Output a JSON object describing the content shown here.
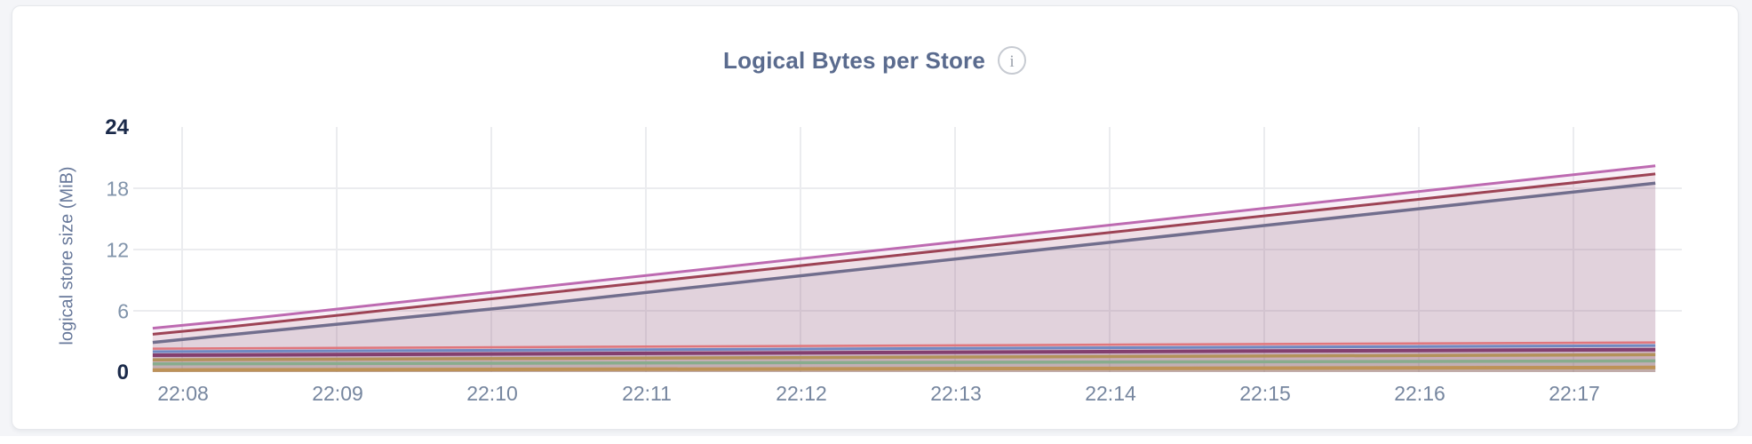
{
  "page": {
    "background": "#f4f5f8"
  },
  "card": {
    "title": "Logical Bytes per Store",
    "info_icon_glyph": "i"
  },
  "chart_data": {
    "type": "area",
    "title": "Logical Bytes per Store",
    "xlabel": "",
    "ylabel": "logical store size (MiB)",
    "ylim": [
      0,
      24
    ],
    "grid": {
      "color": "#ebecef",
      "horizontal_at": [
        6,
        12,
        18
      ],
      "vertical_at_ticks": true
    },
    "legend": "none",
    "y_ticks": [
      {
        "value": 0,
        "label": "0",
        "emphasis": true
      },
      {
        "value": 6,
        "label": "6",
        "emphasis": false
      },
      {
        "value": 12,
        "label": "12",
        "emphasis": false
      },
      {
        "value": 18,
        "label": "18",
        "emphasis": false
      },
      {
        "value": 24,
        "label": "24",
        "emphasis": true
      }
    ],
    "x_ticks": [
      {
        "minute": 0,
        "label": "22:08"
      },
      {
        "minute": 1,
        "label": "22:09"
      },
      {
        "minute": 2,
        "label": "22:10"
      },
      {
        "minute": 3,
        "label": "22:11"
      },
      {
        "minute": 4,
        "label": "22:12"
      },
      {
        "minute": 5,
        "label": "22:13"
      },
      {
        "minute": 6,
        "label": "22:14"
      },
      {
        "minute": 7,
        "label": "22:15"
      },
      {
        "minute": 8,
        "label": "22:16"
      },
      {
        "minute": 9,
        "label": "22:17"
      }
    ],
    "x_domain_minutes_from_22_08": [
      -0.19,
      9.53
    ],
    "series": [
      {
        "id": "store-1",
        "color": "#bd6ab1",
        "width": 3,
        "fill_opacity": 0.1,
        "points": [
          [
            -0.19,
            4.3
          ],
          [
            0.35,
            5.1
          ],
          [
            9.53,
            20.2
          ]
        ]
      },
      {
        "id": "store-2",
        "color": "#9d4355",
        "width": 3,
        "fill_opacity": 0.1,
        "points": [
          [
            -0.19,
            3.7
          ],
          [
            0.35,
            4.5
          ],
          [
            9.53,
            19.4
          ]
        ]
      },
      {
        "id": "store-3",
        "color": "#716e8d",
        "width": 3.5,
        "fill_opacity": 0.1,
        "points": [
          [
            -0.19,
            2.9
          ],
          [
            2.15,
            6.4
          ],
          [
            9.53,
            18.5
          ]
        ]
      },
      {
        "id": "store-4",
        "color": "#e0767c",
        "width": 2.5,
        "fill_opacity": 0.1,
        "points": [
          [
            -0.19,
            2.3
          ],
          [
            9.53,
            2.9
          ]
        ]
      },
      {
        "id": "store-5",
        "color": "#7089c2",
        "width": 3,
        "fill_opacity": 0.1,
        "points": [
          [
            -0.19,
            2.0
          ],
          [
            9.53,
            2.6
          ]
        ]
      },
      {
        "id": "store-6",
        "color": "#833f6f",
        "width": 4,
        "fill_opacity": 0.1,
        "points": [
          [
            -0.19,
            1.65
          ],
          [
            9.53,
            2.2
          ]
        ]
      },
      {
        "id": "store-7",
        "color": "#b3925a",
        "width": 3.5,
        "fill_opacity": 0.1,
        "points": [
          [
            -0.19,
            1.2
          ],
          [
            9.53,
            1.7
          ]
        ]
      },
      {
        "id": "store-8",
        "color": "#88ac8d",
        "width": 3.5,
        "fill_opacity": 0.1,
        "points": [
          [
            -0.19,
            0.8
          ],
          [
            9.53,
            1.1
          ]
        ]
      },
      {
        "id": "store-9",
        "color": "#bd9257",
        "width": 4,
        "fill_opacity": 0.1,
        "points": [
          [
            -0.19,
            0.2
          ],
          [
            9.53,
            0.45
          ]
        ]
      }
    ]
  }
}
